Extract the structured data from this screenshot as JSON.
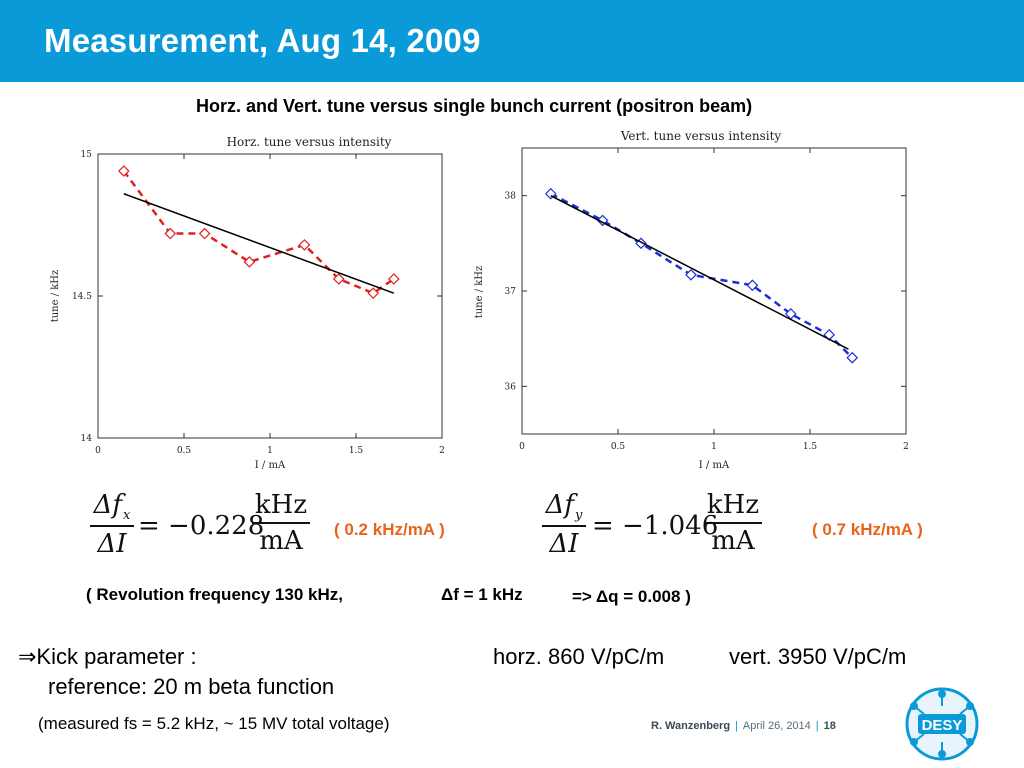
{
  "slide": {
    "title": "Measurement, Aug 14, 2009",
    "subtitle": "Horz. and Vert. tune versus single bunch current (positron beam)"
  },
  "colors": {
    "title_bar": "#0b9ad8",
    "horz_series": "#e02020",
    "vert_series": "#1a2fd8",
    "fit_line": "#000000",
    "highlight_text": "#e8641a"
  },
  "chart_data": [
    {
      "type": "line",
      "title": "Horz. tune versus intensity",
      "xlabel": "I / mA",
      "ylabel": "tune / kHz",
      "xlim": [
        0,
        2
      ],
      "ylim": [
        14,
        15
      ],
      "xticks": [
        "0",
        "0.5",
        "1",
        "1.5",
        "2"
      ],
      "yticks": [
        "14",
        "14.5",
        "15"
      ],
      "grid": false,
      "series": [
        {
          "style": "dashed-diamond",
          "x": [
            0.15,
            0.42,
            0.62,
            0.88,
            1.2,
            1.4,
            1.6,
            1.72
          ],
          "y": [
            14.94,
            14.72,
            14.72,
            14.62,
            14.68,
            14.56,
            14.51,
            14.56
          ]
        },
        {
          "style": "linear-fit",
          "x": [
            0.15,
            1.72
          ],
          "y": [
            14.86,
            14.51
          ]
        }
      ]
    },
    {
      "type": "line",
      "title": "Vert. tune versus intensity",
      "xlabel": "I / mA",
      "ylabel": "tune / kHz",
      "xlim": [
        0,
        2
      ],
      "ylim": [
        35.5,
        38.5
      ],
      "xticks": [
        "0",
        "0.5",
        "1",
        "1.5",
        "2"
      ],
      "yticks": [
        "36",
        "37",
        "38"
      ],
      "grid": false,
      "series": [
        {
          "style": "dashed-diamond",
          "x": [
            0.15,
            0.42,
            0.62,
            0.88,
            1.2,
            1.4,
            1.6,
            1.72
          ],
          "y": [
            38.02,
            37.74,
            37.5,
            37.17,
            37.06,
            36.76,
            36.54,
            36.3
          ]
        },
        {
          "style": "linear-fit",
          "x": [
            0.15,
            1.7
          ],
          "y": [
            38.0,
            36.39
          ]
        }
      ]
    }
  ],
  "formulas": {
    "horz": {
      "delta_f": "Δf",
      "subscript": "x",
      "delta_i": "ΔI",
      "equals": "= −0.228",
      "unit_num": "kHz",
      "unit_den": "mA",
      "note": "( 0.2 kHz/mA )"
    },
    "vert": {
      "delta_f": "Δf",
      "subscript": "y",
      "delta_i": "ΔI",
      "equals": "= −1.046",
      "unit_num": "kHz",
      "unit_den": "mA",
      "note": "( 0.7 kHz/mA )"
    }
  },
  "revolution": {
    "part1": "( Revolution frequency 130 kHz,",
    "part2": "Δf = 1 kHz",
    "part3": "=> Δq = 0.008 )"
  },
  "kick": {
    "label": "⇒Kick parameter :",
    "horz": "horz. 860 V/pC/m",
    "vert": "vert. 3950 V/pC/m",
    "reference": "reference: 20 m beta function",
    "measured": "(measured fs = 5.2 kHz, ~ 15 MV total voltage)"
  },
  "footer": {
    "author": "R.  Wanzenberg",
    "date": "April  26,  2014",
    "page": "18",
    "separator": "|"
  },
  "logo": {
    "text": "DESY",
    "icon": "desy-logo-icon"
  }
}
